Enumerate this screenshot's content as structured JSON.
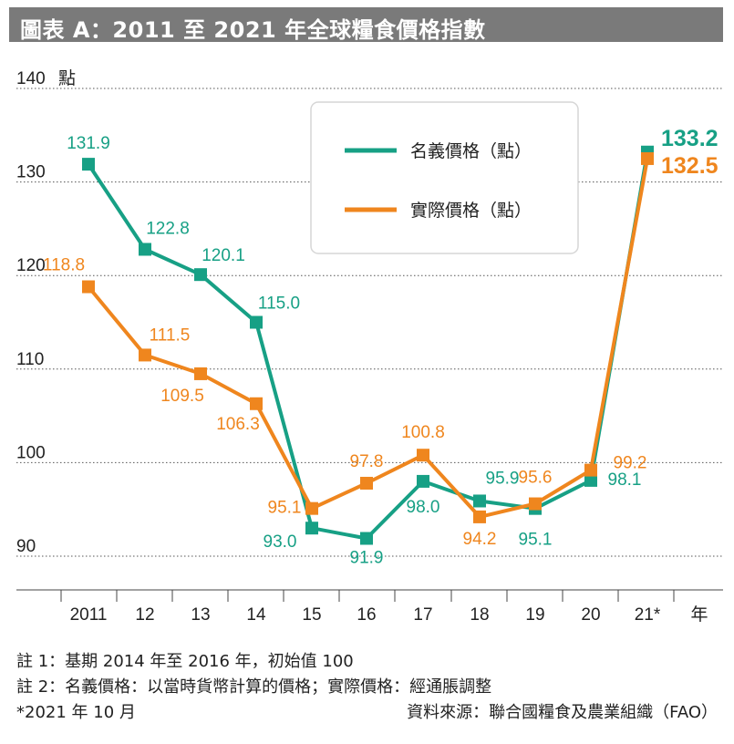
{
  "title": "圖表 A：2011 至 2021 年全球糧食價格指數",
  "colors": {
    "nominal": "#17a085",
    "real": "#ef861e",
    "title_bg": "#7a7a7a"
  },
  "chart_data": {
    "type": "line",
    "title": "圖表 A：2011 至 2021 年全球糧食價格指數",
    "ylabel": "點",
    "xlabel": "年",
    "categories": [
      "2011",
      "12",
      "13",
      "14",
      "15",
      "16",
      "17",
      "18",
      "19",
      "20",
      "21*"
    ],
    "ylim": [
      85,
      140
    ],
    "yticks": [
      140,
      130,
      120,
      110,
      100,
      90
    ],
    "ytick_labels": [
      "140",
      "130",
      "120",
      "110",
      "100",
      "90"
    ],
    "grid": true,
    "legend_placement": "top-right",
    "series": [
      {
        "name": "名義價格（點）",
        "color": "#17a085",
        "values": [
          131.9,
          122.8,
          120.1,
          115.0,
          93.0,
          91.9,
          98.0,
          95.9,
          95.1,
          98.1,
          133.2
        ],
        "labels": [
          "131.9",
          "122.8",
          "120.1",
          "115.0",
          "93.0",
          "91.9",
          "98.0",
          "95.9",
          "95.1",
          "98.1",
          "133.2"
        ]
      },
      {
        "name": "實際價格（點）",
        "color": "#ef861e",
        "values": [
          118.8,
          111.5,
          109.5,
          106.3,
          95.1,
          97.8,
          100.8,
          94.2,
          95.6,
          99.2,
          132.5
        ],
        "labels": [
          "118.8",
          "111.5",
          "109.5",
          "106.3",
          "95.1",
          "97.8",
          "100.8",
          "94.2",
          "95.6",
          "99.2",
          "132.5"
        ]
      }
    ]
  },
  "notes": {
    "note1": "註 1：基期 2014 年至 2016 年，初始值 100",
    "note2": "註 2：名義價格：以當時貨幣計算的價格；實際價格：經通脹調整",
    "note3": "*2021 年 10 月",
    "source": "資料來源：聯合國糧食及農業組織（FAO）"
  }
}
